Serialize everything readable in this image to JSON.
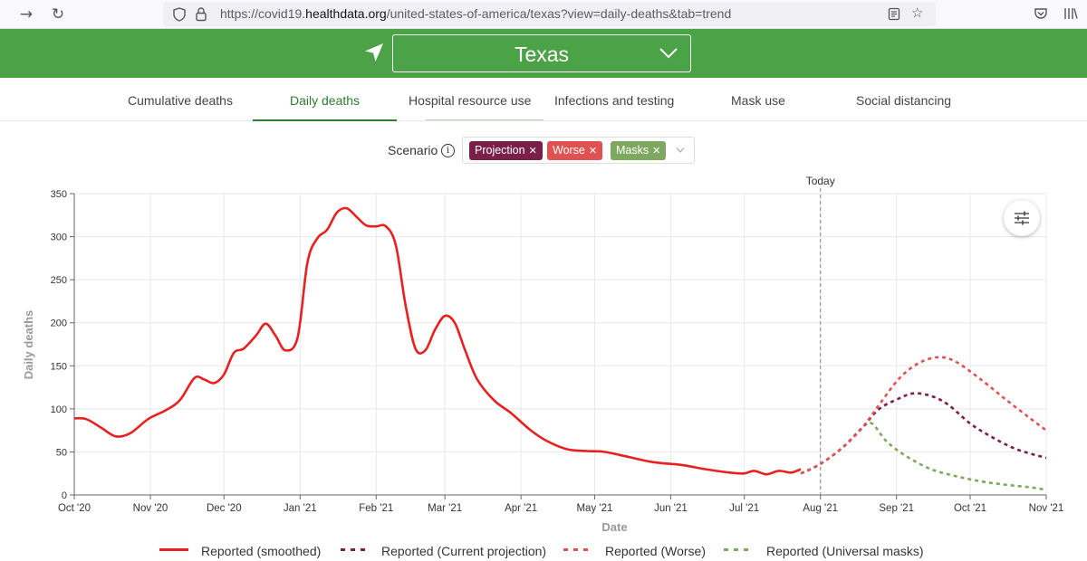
{
  "browser": {
    "url_prefix": "https://covid19.",
    "url_domain": "healthdata.org",
    "url_suffix": "/united-states-of-america/texas?view=daily-deaths&tab=trend"
  },
  "header": {
    "location": "Texas"
  },
  "tabs": [
    {
      "label": "Cumulative deaths"
    },
    {
      "label": "Daily deaths"
    },
    {
      "label": "Hospital resource use"
    },
    {
      "label": "Infections and testing"
    },
    {
      "label": "Mask use"
    },
    {
      "label": "Social distancing"
    }
  ],
  "scenario": {
    "label": "Scenario",
    "chips": [
      {
        "label": "Projection",
        "color": "#7a1f48"
      },
      {
        "label": "Worse",
        "color": "#e05252"
      },
      {
        "label": "Masks",
        "color": "#7ea860"
      }
    ]
  },
  "chart_data": {
    "type": "line",
    "xlabel": "Date",
    "ylabel": "Daily deaths",
    "today_label": "Today",
    "today_x": "2021-08-01",
    "xlim": [
      "2020-10-01",
      "2021-11-01"
    ],
    "ylim": [
      0,
      350
    ],
    "yticks": [
      0,
      50,
      100,
      150,
      200,
      250,
      300,
      350
    ],
    "xticks": [
      {
        "date": "2020-10-01",
        "label": "Oct '20"
      },
      {
        "date": "2020-11-01",
        "label": "Nov '20"
      },
      {
        "date": "2020-12-01",
        "label": "Dec '20"
      },
      {
        "date": "2021-01-01",
        "label": "Jan '21"
      },
      {
        "date": "2021-02-01",
        "label": "Feb '21"
      },
      {
        "date": "2021-03-01",
        "label": "Mar '21"
      },
      {
        "date": "2021-04-01",
        "label": "Apr '21"
      },
      {
        "date": "2021-05-01",
        "label": "May '21"
      },
      {
        "date": "2021-06-01",
        "label": "Jun '21"
      },
      {
        "date": "2021-07-01",
        "label": "Jul '21"
      },
      {
        "date": "2021-08-01",
        "label": "Aug '21"
      },
      {
        "date": "2021-09-01",
        "label": "Sep '21"
      },
      {
        "date": "2021-10-01",
        "label": "Oct '21"
      },
      {
        "date": "2021-11-01",
        "label": "Nov '21"
      }
    ],
    "grid": true,
    "legend_position": "bottom",
    "series": [
      {
        "name": "Reported (smoothed)",
        "color": "#e8201f",
        "dash": "solid",
        "points": [
          [
            "2020-10-01",
            89
          ],
          [
            "2020-10-06",
            88
          ],
          [
            "2020-10-12",
            78
          ],
          [
            "2020-10-18",
            68
          ],
          [
            "2020-10-24",
            72
          ],
          [
            "2020-10-31",
            88
          ],
          [
            "2020-11-07",
            98
          ],
          [
            "2020-11-13",
            110
          ],
          [
            "2020-11-19",
            136
          ],
          [
            "2020-11-23",
            134
          ],
          [
            "2020-11-27",
            130
          ],
          [
            "2020-12-01",
            140
          ],
          [
            "2020-12-05",
            165
          ],
          [
            "2020-12-09",
            170
          ],
          [
            "2020-12-14",
            185
          ],
          [
            "2020-12-18",
            199
          ],
          [
            "2020-12-22",
            185
          ],
          [
            "2020-12-26",
            168
          ],
          [
            "2020-12-31",
            183
          ],
          [
            "2021-01-04",
            270
          ],
          [
            "2021-01-08",
            298
          ],
          [
            "2021-01-12",
            308
          ],
          [
            "2021-01-16",
            328
          ],
          [
            "2021-01-20",
            333
          ],
          [
            "2021-01-24",
            323
          ],
          [
            "2021-01-28",
            313
          ],
          [
            "2021-02-01",
            312
          ],
          [
            "2021-02-05",
            312
          ],
          [
            "2021-02-09",
            290
          ],
          [
            "2021-02-13",
            220
          ],
          [
            "2021-02-17",
            170
          ],
          [
            "2021-02-21",
            168
          ],
          [
            "2021-02-25",
            192
          ],
          [
            "2021-03-01",
            208
          ],
          [
            "2021-03-05",
            200
          ],
          [
            "2021-03-09",
            170
          ],
          [
            "2021-03-14",
            135
          ],
          [
            "2021-03-21",
            110
          ],
          [
            "2021-03-28",
            95
          ],
          [
            "2021-04-05",
            75
          ],
          [
            "2021-04-12",
            62
          ],
          [
            "2021-04-20",
            53
          ],
          [
            "2021-04-28",
            51
          ],
          [
            "2021-05-05",
            50
          ],
          [
            "2021-05-15",
            44
          ],
          [
            "2021-05-25",
            38
          ],
          [
            "2021-06-05",
            35
          ],
          [
            "2021-06-15",
            30
          ],
          [
            "2021-06-25",
            26
          ],
          [
            "2021-07-01",
            25
          ],
          [
            "2021-07-05",
            28
          ],
          [
            "2021-07-10",
            24
          ],
          [
            "2021-07-15",
            28
          ],
          [
            "2021-07-20",
            26
          ],
          [
            "2021-07-24",
            30
          ]
        ]
      },
      {
        "name": "Reported (Current projection)",
        "color": "#7a1f48",
        "dash": "dashed",
        "points": [
          [
            "2021-07-24",
            25
          ],
          [
            "2021-08-01",
            36
          ],
          [
            "2021-08-10",
            55
          ],
          [
            "2021-08-18",
            78
          ],
          [
            "2021-08-25",
            100
          ],
          [
            "2021-09-02",
            112
          ],
          [
            "2021-09-08",
            118
          ],
          [
            "2021-09-15",
            115
          ],
          [
            "2021-09-22",
            105
          ],
          [
            "2021-10-01",
            83
          ],
          [
            "2021-10-10",
            67
          ],
          [
            "2021-10-20",
            53
          ],
          [
            "2021-11-01",
            43
          ]
        ]
      },
      {
        "name": "Reported (Worse)",
        "color": "#e05252",
        "dash": "dashed",
        "points": [
          [
            "2021-07-24",
            25
          ],
          [
            "2021-08-01",
            36
          ],
          [
            "2021-08-10",
            55
          ],
          [
            "2021-08-18",
            78
          ],
          [
            "2021-08-25",
            105
          ],
          [
            "2021-09-02",
            135
          ],
          [
            "2021-09-10",
            153
          ],
          [
            "2021-09-18",
            160
          ],
          [
            "2021-09-25",
            155
          ],
          [
            "2021-10-05",
            135
          ],
          [
            "2021-10-15",
            112
          ],
          [
            "2021-10-25",
            90
          ],
          [
            "2021-11-01",
            75
          ]
        ]
      },
      {
        "name": "Reported (Universal masks)",
        "color": "#7ea860",
        "dash": "dashed",
        "points": [
          [
            "2021-07-24",
            25
          ],
          [
            "2021-08-01",
            36
          ],
          [
            "2021-08-10",
            55
          ],
          [
            "2021-08-18",
            78
          ],
          [
            "2021-08-22",
            83
          ],
          [
            "2021-08-28",
            62
          ],
          [
            "2021-09-05",
            45
          ],
          [
            "2021-09-15",
            30
          ],
          [
            "2021-09-25",
            22
          ],
          [
            "2021-10-05",
            16
          ],
          [
            "2021-10-15",
            12
          ],
          [
            "2021-10-25",
            9
          ],
          [
            "2021-11-01",
            6
          ]
        ]
      }
    ]
  }
}
